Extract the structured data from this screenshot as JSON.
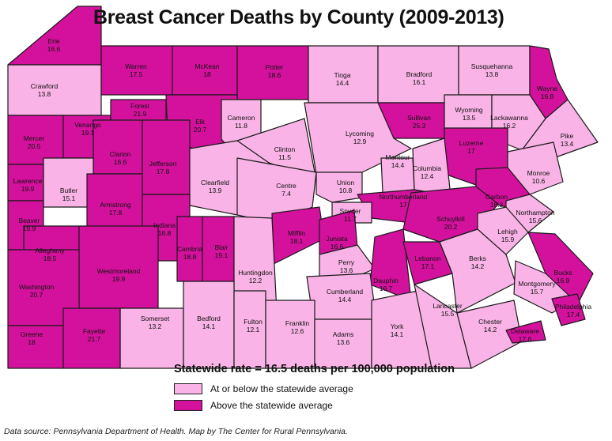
{
  "title": "Breast Cancer Deaths by County (2009-2013)",
  "statewide": "Statewide rate = 16.5 deaths per 100,000 population",
  "statewide_rate": 16.5,
  "colors": {
    "below": "#f9b3e6",
    "above": "#d4119d",
    "outline": "#1a1a1a",
    "background": "#ffffff"
  },
  "legend": [
    {
      "label": "At or below the statewide average",
      "category": "below"
    },
    {
      "label": "Above the statewide average",
      "category": "above"
    }
  ],
  "source": "Data source: Pennsylvania Department of Health. Map by The Center for Rural Pennsylvania.",
  "counties": [
    {
      "name": "Erie",
      "rate": "16.6"
    },
    {
      "name": "Crawford",
      "rate": "13.8"
    },
    {
      "name": "Warren",
      "rate": "17.5"
    },
    {
      "name": "McKean",
      "rate": "18"
    },
    {
      "name": "Potter",
      "rate": "18.6"
    },
    {
      "name": "Tioga",
      "rate": "14.4"
    },
    {
      "name": "Bradford",
      "rate": "16.1"
    },
    {
      "name": "Susquehanna",
      "rate": "13.8"
    },
    {
      "name": "Wayne",
      "rate": "16.8"
    },
    {
      "name": "Mercer",
      "rate": "20.5"
    },
    {
      "name": "Venango",
      "rate": "19.1"
    },
    {
      "name": "Forest",
      "rate": "21.9"
    },
    {
      "name": "Elk",
      "rate": "20.7"
    },
    {
      "name": "Cameron",
      "rate": "11.8"
    },
    {
      "name": "Sullivan",
      "rate": "25.3"
    },
    {
      "name": "Wyoming",
      "rate": "13.5"
    },
    {
      "name": "Lackawanna",
      "rate": "16.2"
    },
    {
      "name": "Pike",
      "rate": "13.4"
    },
    {
      "name": "Clarion",
      "rate": "16.6"
    },
    {
      "name": "Jefferson",
      "rate": "17.8"
    },
    {
      "name": "Clinton",
      "rate": "11.5"
    },
    {
      "name": "Lycoming",
      "rate": "12.9"
    },
    {
      "name": "Luzerne",
      "rate": "17"
    },
    {
      "name": "Lawrence",
      "rate": "19.9"
    },
    {
      "name": "Butler",
      "rate": "15.1"
    },
    {
      "name": "Clearfield",
      "rate": "13.9"
    },
    {
      "name": "Centre",
      "rate": "7.4"
    },
    {
      "name": "Union",
      "rate": "10.8"
    },
    {
      "name": "Montour",
      "rate": "14.4"
    },
    {
      "name": "Columbia",
      "rate": "12.4"
    },
    {
      "name": "Monroe",
      "rate": "10.6"
    },
    {
      "name": "Armstrong",
      "rate": "17.8"
    },
    {
      "name": "Northumberland",
      "rate": "17"
    },
    {
      "name": "Carbon",
      "rate": "18.3"
    },
    {
      "name": "Beaver",
      "rate": "19.9"
    },
    {
      "name": "Indiana",
      "rate": "16.8"
    },
    {
      "name": "Snyder",
      "rate": "11.7"
    },
    {
      "name": "Schuylkill",
      "rate": "20.2"
    },
    {
      "name": "Northampton",
      "rate": "15.6"
    },
    {
      "name": "Lehigh",
      "rate": "15.9"
    },
    {
      "name": "Allegheny",
      "rate": "18.5"
    },
    {
      "name": "Cambria",
      "rate": "18.8"
    },
    {
      "name": "Blair",
      "rate": "19.1"
    },
    {
      "name": "Mifflin",
      "rate": "18.1"
    },
    {
      "name": "Juniata",
      "rate": "16.6"
    },
    {
      "name": "Westmoreland",
      "rate": "19.9"
    },
    {
      "name": "Huntingdon",
      "rate": "12.2"
    },
    {
      "name": "Perry",
      "rate": "13.6"
    },
    {
      "name": "Dauphin",
      "rate": "16.7"
    },
    {
      "name": "Lebanon",
      "rate": "17.1"
    },
    {
      "name": "Berks",
      "rate": "14.2"
    },
    {
      "name": "Bucks",
      "rate": "16.9"
    },
    {
      "name": "Washington",
      "rate": "20.7"
    },
    {
      "name": "Cumberland",
      "rate": "14.4"
    },
    {
      "name": "Montgomery",
      "rate": "15.7"
    },
    {
      "name": "Somerset",
      "rate": "13.2"
    },
    {
      "name": "Bedford",
      "rate": "14.1"
    },
    {
      "name": "Fulton",
      "rate": "12.1"
    },
    {
      "name": "Franklin",
      "rate": "12.6"
    },
    {
      "name": "Adams",
      "rate": "13.6"
    },
    {
      "name": "York",
      "rate": "14.1"
    },
    {
      "name": "Lancaster",
      "rate": "15.5"
    },
    {
      "name": "Chester",
      "rate": "14.2"
    },
    {
      "name": "Philadelphia",
      "rate": "17.4"
    },
    {
      "name": "Delaware",
      "rate": "17.6"
    },
    {
      "name": "Greene",
      "rate": "18"
    },
    {
      "name": "Fayette",
      "rate": "21.7"
    }
  ]
}
